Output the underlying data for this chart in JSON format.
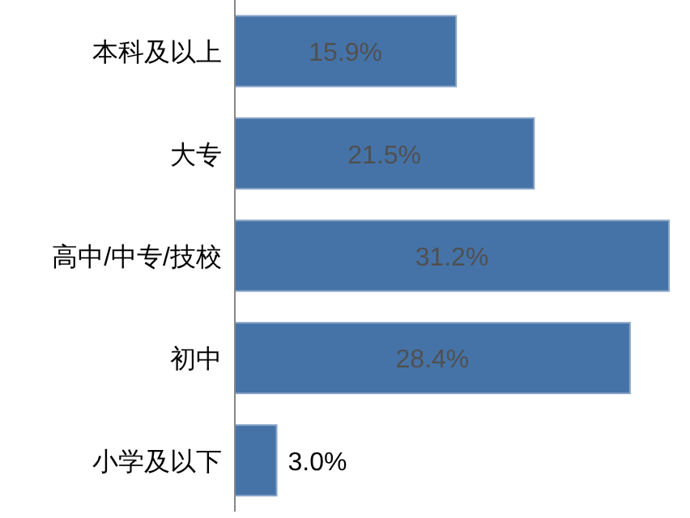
{
  "chart_data": {
    "type": "bar",
    "orientation": "horizontal",
    "categories": [
      "本科及以上",
      "大专",
      "高中/中专/技校",
      "初中",
      "小学及以下"
    ],
    "values": [
      15.9,
      21.5,
      31.2,
      28.4,
      3.0
    ],
    "value_labels": [
      "15.9%",
      "21.5%",
      "31.2%",
      "28.4%",
      "3.0%"
    ],
    "color": "#4573a7"
  }
}
